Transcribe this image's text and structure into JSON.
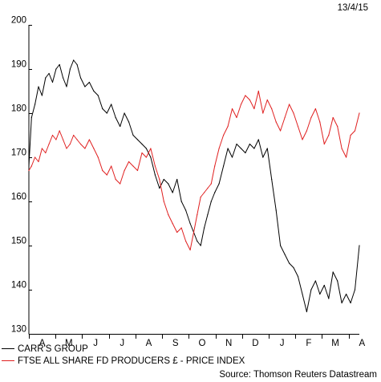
{
  "date_label": "13/4/15",
  "source_label": "Source: Thomson Reuters Datastream",
  "chart_data": {
    "type": "line",
    "title": "",
    "xlabel": "",
    "ylabel": "",
    "ylim": [
      130,
      200
    ],
    "yticks": [
      130,
      140,
      150,
      160,
      170,
      180,
      190,
      200
    ],
    "x_range": [
      "2014-04-01",
      "2015-04-13"
    ],
    "categories": [
      "A",
      "M",
      "J",
      "J",
      "A",
      "S",
      "O",
      "N",
      "D",
      "J",
      "F",
      "M",
      "A"
    ],
    "grid": false,
    "legend_position": "bottom-left",
    "series": [
      {
        "name": "CARR'S GROUP",
        "color": "#000000",
        "x": [
          "2014-04-01",
          "2014-04-04",
          "2014-04-08",
          "2014-04-12",
          "2014-04-16",
          "2014-04-20",
          "2014-04-24",
          "2014-04-28",
          "2014-05-02",
          "2014-05-06",
          "2014-05-10",
          "2014-05-14",
          "2014-05-18",
          "2014-05-22",
          "2014-05-26",
          "2014-05-30",
          "2014-06-04",
          "2014-06-09",
          "2014-06-14",
          "2014-06-19",
          "2014-06-24",
          "2014-06-29",
          "2014-07-04",
          "2014-07-09",
          "2014-07-14",
          "2014-07-19",
          "2014-07-24",
          "2014-07-29",
          "2014-08-03",
          "2014-08-08",
          "2014-08-13",
          "2014-08-18",
          "2014-08-23",
          "2014-08-28",
          "2014-09-02",
          "2014-09-07",
          "2014-09-12",
          "2014-09-17",
          "2014-09-22",
          "2014-09-27",
          "2014-10-02",
          "2014-10-06",
          "2014-10-10",
          "2014-10-14",
          "2014-10-18",
          "2014-10-22",
          "2014-10-26",
          "2014-10-30",
          "2014-11-04",
          "2014-11-09",
          "2014-11-14",
          "2014-11-19",
          "2014-11-24",
          "2014-11-29",
          "2014-12-04",
          "2014-12-09",
          "2014-12-14",
          "2014-12-19",
          "2014-12-24",
          "2014-12-29",
          "2015-01-03",
          "2015-01-08",
          "2015-01-13",
          "2015-01-18",
          "2015-01-23",
          "2015-01-28",
          "2015-02-02",
          "2015-02-07",
          "2015-02-12",
          "2015-02-17",
          "2015-02-22",
          "2015-02-27",
          "2015-03-04",
          "2015-03-09",
          "2015-03-14",
          "2015-03-19",
          "2015-03-24",
          "2015-03-29",
          "2015-04-03",
          "2015-04-08",
          "2015-04-13"
        ],
        "values": [
          168,
          179,
          182,
          186,
          184,
          188,
          189,
          187,
          190,
          191,
          188,
          186,
          190,
          192,
          191,
          188,
          186,
          187,
          185,
          184,
          181,
          180,
          182,
          179,
          177,
          180,
          178,
          175,
          174,
          173,
          172,
          170,
          166,
          163,
          165,
          164,
          162,
          165,
          160,
          158,
          155,
          153,
          151,
          150,
          154,
          157,
          160,
          162,
          164,
          168,
          172,
          170,
          173,
          172,
          171,
          173,
          172,
          174,
          170,
          172,
          165,
          158,
          150,
          148,
          146,
          145,
          143,
          139,
          135,
          140,
          142,
          139,
          141,
          138,
          144,
          142,
          137,
          139,
          137,
          140,
          150
        ]
      },
      {
        "name": "FTSE ALL SHARE FD PRODUCERS £ - PRICE INDEX",
        "color": "#e02020",
        "x": [
          "2014-04-01",
          "2014-04-04",
          "2014-04-08",
          "2014-04-12",
          "2014-04-16",
          "2014-04-20",
          "2014-04-24",
          "2014-04-28",
          "2014-05-02",
          "2014-05-06",
          "2014-05-10",
          "2014-05-14",
          "2014-05-18",
          "2014-05-22",
          "2014-05-26",
          "2014-05-30",
          "2014-06-04",
          "2014-06-09",
          "2014-06-14",
          "2014-06-19",
          "2014-06-24",
          "2014-06-29",
          "2014-07-04",
          "2014-07-09",
          "2014-07-14",
          "2014-07-19",
          "2014-07-24",
          "2014-07-29",
          "2014-08-03",
          "2014-08-08",
          "2014-08-13",
          "2014-08-18",
          "2014-08-23",
          "2014-08-28",
          "2014-09-02",
          "2014-09-07",
          "2014-09-12",
          "2014-09-17",
          "2014-09-22",
          "2014-09-27",
          "2014-10-02",
          "2014-10-06",
          "2014-10-10",
          "2014-10-14",
          "2014-10-18",
          "2014-10-22",
          "2014-10-26",
          "2014-10-30",
          "2014-11-04",
          "2014-11-09",
          "2014-11-14",
          "2014-11-19",
          "2014-11-24",
          "2014-11-29",
          "2014-12-04",
          "2014-12-09",
          "2014-12-14",
          "2014-12-19",
          "2014-12-24",
          "2014-12-29",
          "2015-01-03",
          "2015-01-08",
          "2015-01-13",
          "2015-01-18",
          "2015-01-23",
          "2015-01-28",
          "2015-02-02",
          "2015-02-07",
          "2015-02-12",
          "2015-02-17",
          "2015-02-22",
          "2015-02-27",
          "2015-03-04",
          "2015-03-09",
          "2015-03-14",
          "2015-03-19",
          "2015-03-24",
          "2015-03-29",
          "2015-04-03",
          "2015-04-08",
          "2015-04-13"
        ],
        "values": [
          167,
          168,
          170,
          169,
          172,
          171,
          173,
          175,
          174,
          176,
          174,
          172,
          173,
          175,
          174,
          173,
          172,
          174,
          172,
          170,
          167,
          166,
          168,
          165,
          164,
          167,
          169,
          168,
          167,
          171,
          170,
          172,
          168,
          165,
          160,
          157,
          155,
          153,
          154,
          151,
          149,
          153,
          157,
          161,
          162,
          163,
          164,
          168,
          172,
          175,
          177,
          181,
          179,
          182,
          184,
          183,
          181,
          185,
          180,
          183,
          181,
          178,
          176,
          179,
          182,
          180,
          177,
          174,
          176,
          179,
          181,
          178,
          173,
          175,
          179,
          177,
          172,
          170,
          175,
          176,
          180
        ]
      }
    ]
  }
}
